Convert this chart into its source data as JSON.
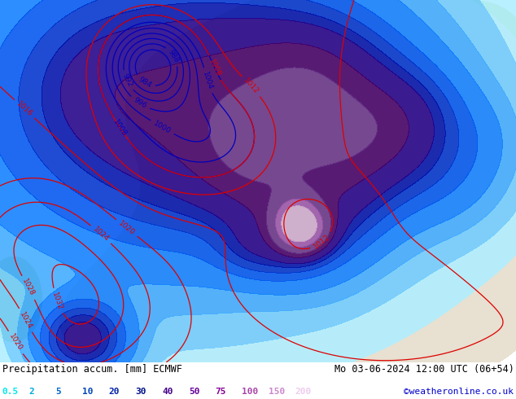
{
  "title_left": "Precipitation accum. [mm] ECMWF",
  "title_right": "Mo 03-06-2024 12:00 UTC (06+54)",
  "credit": "©weatheronline.co.uk",
  "legend_values": [
    "0.5",
    "2",
    "5",
    "10",
    "20",
    "30",
    "40",
    "50",
    "75",
    "100",
    "150",
    "200"
  ],
  "legend_colors": [
    "#00e8e8",
    "#00aadd",
    "#0066cc",
    "#0044bb",
    "#0022aa",
    "#001188",
    "#440088",
    "#660099",
    "#880099",
    "#aa44aa",
    "#cc88cc",
    "#eeccee"
  ],
  "fig_width": 6.34,
  "fig_height": 4.9,
  "dpi": 100,
  "bottom_bar_height": 0.092,
  "bg_white": "#ffffff",
  "land_color": "#e8e0d0",
  "sea_color": "#d8d8d8",
  "green_color": "#b8d888",
  "precip_levels": [
    0.5,
    2,
    5,
    10,
    20,
    30,
    40,
    50,
    75,
    100,
    150,
    200,
    999
  ],
  "precip_colors": [
    "#b0eeff",
    "#70ccff",
    "#40aaff",
    "#1080ff",
    "#0055ee",
    "#0033cc",
    "#0011aa",
    "#220088",
    "#440066",
    "#663388",
    "#9955aa",
    "#ccaacc"
  ],
  "isobar_red_color": "#dd0000",
  "isobar_blue_color": "#0000bb",
  "isobar_lw": 0.9,
  "label_fs": 6.5,
  "title_fs": 8.5,
  "legend_fs": 8.0,
  "credit_fs": 8.0,
  "xlim": [
    -30,
    45
  ],
  "ylim": [
    27,
    73
  ]
}
